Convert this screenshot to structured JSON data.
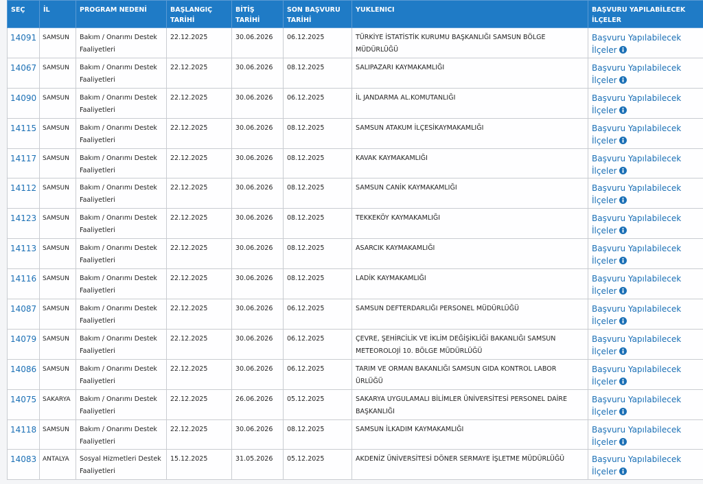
{
  "table": {
    "header": [
      "SEÇ",
      "İL",
      "PROGRAM NEDENİ",
      "BAŞLANGIÇ TARİHİ",
      "BİTİŞ TARİHİ",
      "SON BAŞVURU TARİHİ",
      "YUKLENICI",
      "BAŞVURU YAPILABİLECEK İLÇELER"
    ],
    "rows": [
      [
        "14091",
        "SAMSUN",
        "Bakım / Onarımı Destek Faaliyetleri",
        "22.12.2025",
        "30.06.2026",
        "06.12.2025",
        "TÜRKİYE İSTATİSTİK KURUMU BAŞKANLIĞI SAMSUN BÖLGE MÜDÜRLÜĞÜ",
        "Başvuru Yapılabilecek İlçeler"
      ],
      [
        "14067",
        "SAMSUN",
        "Bakım / Onarımı Destek Faaliyetleri",
        "22.12.2025",
        "30.06.2026",
        "08.12.2025",
        "SALIPAZARI KAYMAKAMLIĞI",
        "Başvuru Yapılabilecek İlçeler"
      ],
      [
        "14090",
        "SAMSUN",
        "Bakım / Onarımı Destek Faaliyetleri",
        "22.12.2025",
        "30.06.2026",
        "06.12.2025",
        "İL JANDARMA AL.KOMUTANLIĞI",
        "Başvuru Yapılabilecek İlçeler"
      ],
      [
        "14115",
        "SAMSUN",
        "Bakım / Onarımı Destek Faaliyetleri",
        "22.12.2025",
        "30.06.2026",
        "08.12.2025",
        "SAMSUN ATAKUM İLÇESİKAYMAKAMLIĞI",
        "Başvuru Yapılabilecek İlçeler"
      ],
      [
        "14117",
        "SAMSUN",
        "Bakım / Onarımı Destek Faaliyetleri",
        "22.12.2025",
        "30.06.2026",
        "08.12.2025",
        "KAVAK KAYMAKAMLIĞI",
        "Başvuru Yapılabilecek İlçeler"
      ],
      [
        "14112",
        "SAMSUN",
        "Bakım / Onarımı Destek Faaliyetleri",
        "22.12.2025",
        "30.06.2026",
        "08.12.2025",
        "SAMSUN CANİK KAYMAKAMLIĞI",
        "Başvuru Yapılabilecek İlçeler"
      ],
      [
        "14123",
        "SAMSUN",
        "Bakım / Onarımı Destek Faaliyetleri",
        "22.12.2025",
        "30.06.2026",
        "08.12.2025",
        "TEKKEKÖY KAYMAKAMLIĞI",
        "Başvuru Yapılabilecek İlçeler"
      ],
      [
        "14113",
        "SAMSUN",
        "Bakım / Onarımı Destek Faaliyetleri",
        "22.12.2025",
        "30.06.2026",
        "08.12.2025",
        "ASARCIK KAYMAKAMLIĞI",
        "Başvuru Yapılabilecek İlçeler"
      ],
      [
        "14116",
        "SAMSUN",
        "Bakım / Onarımı Destek Faaliyetleri",
        "22.12.2025",
        "30.06.2026",
        "08.12.2025",
        "LADİK KAYMAKAMLIĞI",
        "Başvuru Yapılabilecek İlçeler"
      ],
      [
        "14087",
        "SAMSUN",
        "Bakım / Onarımı Destek Faaliyetleri",
        "22.12.2025",
        "30.06.2026",
        "06.12.2025",
        "SAMSUN DEFTERDARLIĞI PERSONEL MÜDÜRLÜĞÜ",
        "Başvuru Yapılabilecek İlçeler"
      ],
      [
        "14079",
        "SAMSUN",
        "Bakım / Onarımı Destek Faaliyetleri",
        "22.12.2025",
        "30.06.2026",
        "06.12.2025",
        "ÇEVRE, ŞEHİRCİLİK VE İKLİM DEĞİŞİKLİĞİ BAKANLIĞI SAMSUN METEOROLOJİ 10. BÖLGE MÜDÜRLÜĞÜ",
        "Başvuru Yapılabilecek İlçeler"
      ],
      [
        "14086",
        "SAMSUN",
        "Bakım / Onarımı Destek Faaliyetleri",
        "22.12.2025",
        "30.06.2026",
        "06.12.2025",
        "TARIM VE ORMAN BAKANLIĞI SAMSUN GIDA KONTROL LABOR ÜRLÜĞÜ",
        "Başvuru Yapılabilecek İlçeler"
      ],
      [
        "14075",
        "SAKARYA",
        "Bakım / Onarımı Destek Faaliyetleri",
        "22.12.2025",
        "26.06.2026",
        "05.12.2025",
        "SAKARYA UYGULAMALI BİLİMLER ÜNİVERSİTESİ PERSONEL DAİRE BAŞKANLIĞI",
        "Başvuru Yapılabilecek İlçeler"
      ],
      [
        "14118",
        "SAMSUN",
        "Bakım / Onarımı Destek Faaliyetleri",
        "22.12.2025",
        "30.06.2026",
        "08.12.2025",
        "SAMSUN İLKADIM KAYMAKAMLIĞI",
        "Başvuru Yapılabilecek İlçeler"
      ],
      [
        "14083",
        "ANTALYA",
        "Sosyal Hizmetleri Destek Faaliyetleri",
        "15.12.2025",
        "31.05.2026",
        "05.12.2025",
        "AKDENİZ ÜNİVERSİTESİ DÖNER SERMAYE İŞLETME MÜDÜRLÜĞÜ",
        "Başvuru Yapılabilecek İlçeler"
      ]
    ]
  }
}
